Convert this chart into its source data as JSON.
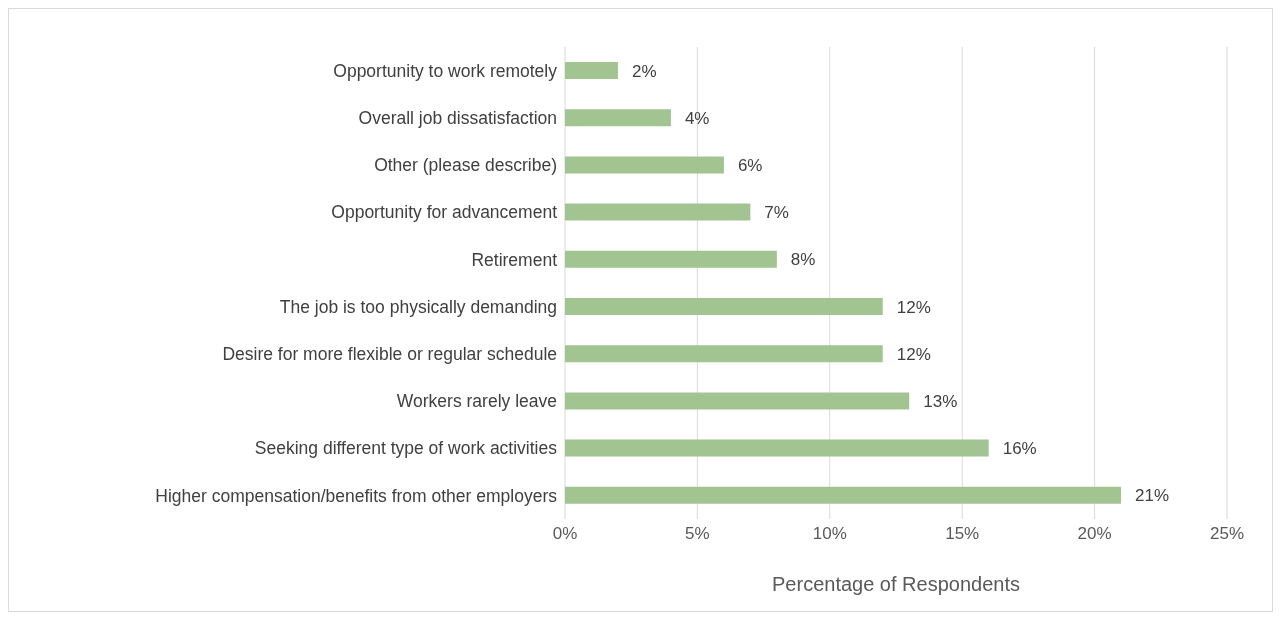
{
  "chart_data": {
    "type": "bar",
    "orientation": "horizontal",
    "xlabel": "Percentage of Respondents",
    "categories": [
      "Opportunity to work remotely",
      "Overall job dissatisfaction",
      "Other (please describe)",
      "Opportunity for advancement",
      "Retirement",
      "The job is too physically demanding",
      "Desire for more flexible or regular schedule",
      "Workers rarely leave",
      "Seeking different type of work activities",
      "Higher compensation/benefits from other employers"
    ],
    "values": [
      2,
      4,
      6,
      7,
      8,
      12,
      12,
      13,
      16,
      21
    ],
    "value_labels": [
      "2%",
      "4%",
      "6%",
      "7%",
      "8%",
      "12%",
      "12%",
      "13%",
      "16%",
      "21%"
    ],
    "color": "#a1c490",
    "xlim": [
      0,
      25
    ],
    "xticks": [
      {
        "value": 0,
        "label": "0%"
      },
      {
        "value": 5,
        "label": "5%"
      },
      {
        "value": 10,
        "label": "10%"
      },
      {
        "value": 15,
        "label": "15%"
      },
      {
        "value": 20,
        "label": "20%"
      },
      {
        "value": 25,
        "label": "25%"
      }
    ],
    "grid": "x",
    "legend": false
  }
}
